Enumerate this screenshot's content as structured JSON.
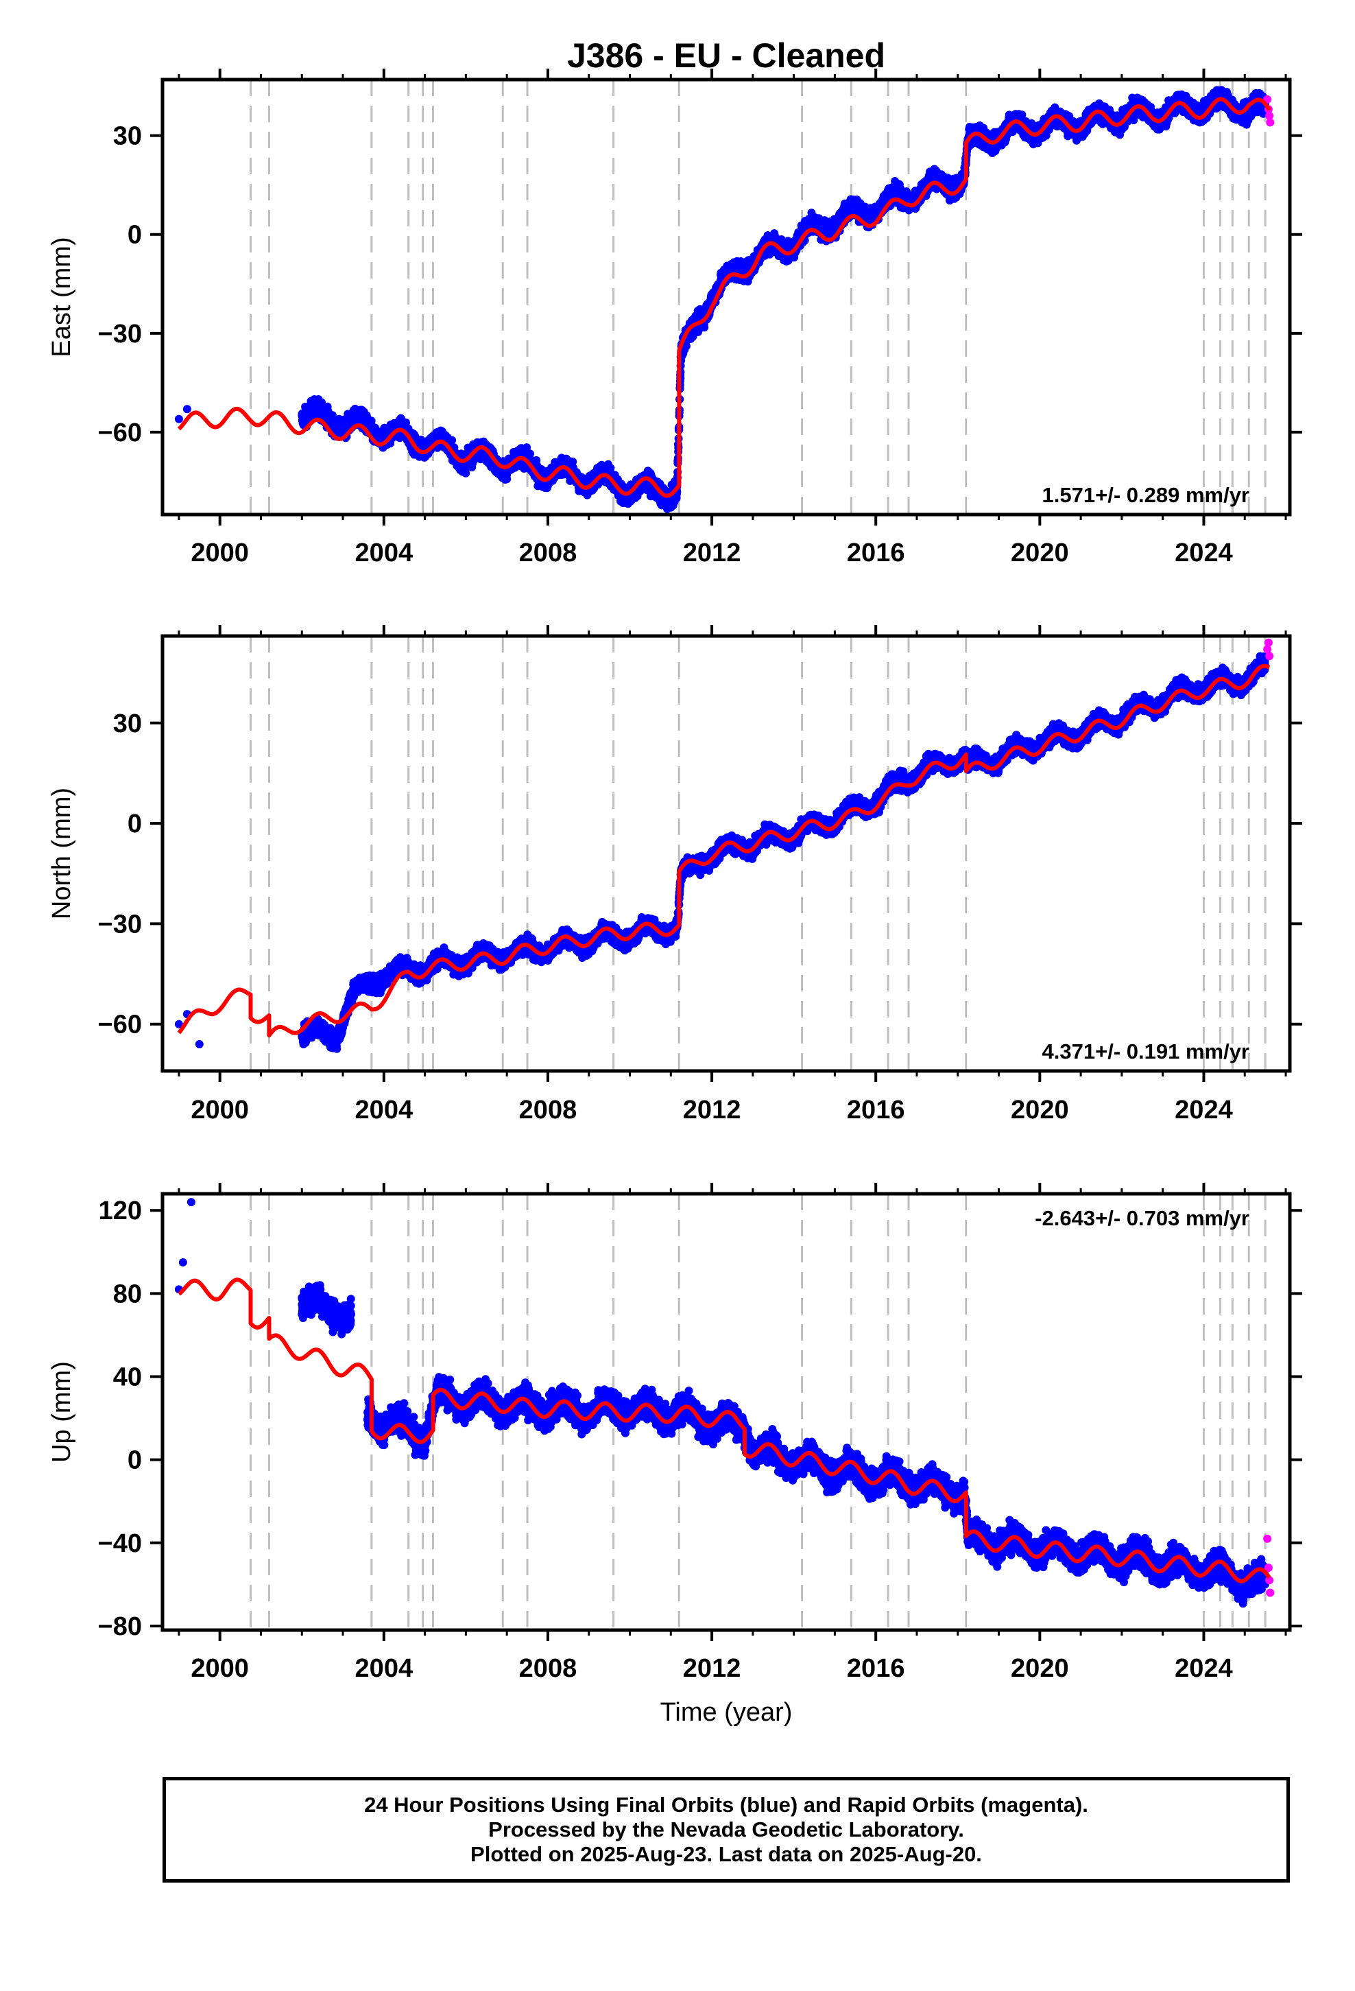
{
  "chart_data": {
    "type": "scatter",
    "title": "J386  - EU - Cleaned",
    "xlabel": "Time (year)",
    "xlim": [
      1998.6,
      2026.1
    ],
    "xticks": [
      2000,
      2004,
      2008,
      2012,
      2016,
      2020,
      2024
    ],
    "colors": {
      "final_orbits": "#0000ff",
      "rapid_orbits": "#ff00ff",
      "model": "#ff0000",
      "breaks": "#bfbfbf"
    },
    "equipment_breaks": [
      2000.75,
      2001.2,
      2003.7,
      2004.6,
      2004.95,
      2005.2,
      2006.9,
      2007.5,
      2009.6,
      2011.2,
      2014.2,
      2015.4,
      2016.3,
      2016.8,
      2018.2,
      2024.0,
      2024.4,
      2024.7,
      2025.1,
      2025.5
    ],
    "panels": [
      {
        "name": "east",
        "ylabel": "East (mm)",
        "ylim": [
          -85,
          47
        ],
        "yticks": [
          -60,
          -30,
          0,
          30
        ],
        "rate_label": "1.571+/- 0.289 mm/yr",
        "rate_position": "bottom-right",
        "data_start": 2002.0,
        "noise": 2.5,
        "final_orbits": [
          [
            1999.0,
            -56
          ],
          [
            1999.2,
            -53
          ],
          [
            2002.0,
            -54
          ],
          [
            2003.0,
            -57
          ],
          [
            2004.0,
            -60
          ],
          [
            2005.0,
            -63
          ],
          [
            2006.0,
            -67
          ],
          [
            2007.0,
            -69
          ],
          [
            2008.0,
            -72
          ],
          [
            2009.0,
            -74
          ],
          [
            2010.0,
            -77
          ],
          [
            2011.15,
            -78
          ],
          [
            2011.25,
            -37
          ],
          [
            2011.6,
            -28
          ],
          [
            2012.0,
            -18
          ],
          [
            2012.5,
            -13
          ],
          [
            2013.0,
            -7
          ],
          [
            2014.0,
            -2
          ],
          [
            2015.0,
            4
          ],
          [
            2016.0,
            8
          ],
          [
            2017.0,
            13
          ],
          [
            2018.15,
            17
          ],
          [
            2018.25,
            27
          ],
          [
            2019.0,
            31
          ],
          [
            2020.0,
            33
          ],
          [
            2021.0,
            34
          ],
          [
            2022.0,
            36
          ],
          [
            2023.0,
            37
          ],
          [
            2024.0,
            39
          ],
          [
            2025.0,
            39
          ],
          [
            2025.5,
            37
          ]
        ],
        "rapid_orbits": [
          [
            2025.55,
            41
          ],
          [
            2025.58,
            38
          ],
          [
            2025.6,
            36
          ],
          [
            2025.62,
            34
          ]
        ],
        "model": [
          [
            1999.0,
            -57
          ],
          [
            2000.75,
            -55
          ],
          [
            2001.2,
            -56
          ],
          [
            2002.0,
            -58
          ],
          [
            2003.7,
            -61
          ],
          [
            2004.6,
            -62
          ],
          [
            2005.2,
            -65
          ],
          [
            2006.9,
            -68
          ],
          [
            2007.5,
            -71
          ],
          [
            2009.6,
            -76
          ],
          [
            2011.2,
            -77
          ],
          [
            2011.2,
            -36
          ],
          [
            2011.6,
            -28
          ],
          [
            2012.0,
            -20
          ],
          [
            2012.6,
            -13
          ],
          [
            2013.2,
            -6
          ],
          [
            2014.2,
            -2
          ],
          [
            2015.4,
            3
          ],
          [
            2016.3,
            7
          ],
          [
            2016.8,
            11
          ],
          [
            2018.2,
            16
          ],
          [
            2018.2,
            27
          ],
          [
            2019.0,
            31
          ],
          [
            2020.0,
            33
          ],
          [
            2021.0,
            34
          ],
          [
            2022.0,
            36
          ],
          [
            2023.0,
            37
          ],
          [
            2024.0,
            38
          ],
          [
            2024.7,
            39
          ],
          [
            2025.1,
            40
          ],
          [
            2025.6,
            37
          ]
        ],
        "seasonal_amplitude": 2.5
      },
      {
        "name": "north",
        "ylabel": "North (mm)",
        "ylim": [
          -74,
          56
        ],
        "yticks": [
          -60,
          -30,
          0,
          30
        ],
        "rate_label": "4.371+/- 0.191 mm/yr",
        "rate_position": "bottom-right",
        "data_start": 2002.0,
        "noise": 2.2,
        "final_orbits": [
          [
            1999.0,
            -60
          ],
          [
            1999.2,
            -57
          ],
          [
            1999.5,
            -66
          ],
          [
            2002.0,
            -62
          ],
          [
            2002.8,
            -64
          ],
          [
            2003.2,
            -52
          ],
          [
            2004.0,
            -45
          ],
          [
            2005.0,
            -43
          ],
          [
            2006.0,
            -41
          ],
          [
            2007.0,
            -39
          ],
          [
            2008.0,
            -37
          ],
          [
            2009.0,
            -35
          ],
          [
            2010.0,
            -33
          ],
          [
            2011.15,
            -31
          ],
          [
            2011.25,
            -16
          ],
          [
            2012.0,
            -9
          ],
          [
            2013.0,
            -6
          ],
          [
            2014.0,
            -3
          ],
          [
            2015.0,
            1
          ],
          [
            2016.0,
            7
          ],
          [
            2017.0,
            15
          ],
          [
            2018.15,
            20
          ],
          [
            2018.25,
            17
          ],
          [
            2019.0,
            20
          ],
          [
            2020.0,
            24
          ],
          [
            2021.0,
            27
          ],
          [
            2022.0,
            32
          ],
          [
            2023.0,
            37
          ],
          [
            2024.0,
            41
          ],
          [
            2025.0,
            43
          ],
          [
            2025.5,
            46
          ]
        ],
        "rapid_orbits": [
          [
            2025.55,
            52
          ],
          [
            2025.58,
            54
          ],
          [
            2025.6,
            50
          ]
        ],
        "model": [
          [
            1999.0,
            -61
          ],
          [
            2000.0,
            -54
          ],
          [
            2000.75,
            -50
          ],
          [
            2000.75,
            -57
          ],
          [
            2001.2,
            -58
          ],
          [
            2001.2,
            -64
          ],
          [
            2002.0,
            -60
          ],
          [
            2003.7,
            -55
          ],
          [
            2004.6,
            -45
          ],
          [
            2005.2,
            -43
          ],
          [
            2006.9,
            -40
          ],
          [
            2007.5,
            -38
          ],
          [
            2009.6,
            -33
          ],
          [
            2011.2,
            -31
          ],
          [
            2011.2,
            -15
          ],
          [
            2012.0,
            -9
          ],
          [
            2013.0,
            -6
          ],
          [
            2014.2,
            -2
          ],
          [
            2015.4,
            2
          ],
          [
            2016.3,
            8
          ],
          [
            2016.8,
            13
          ],
          [
            2018.2,
            20
          ],
          [
            2018.2,
            15
          ],
          [
            2019.0,
            19
          ],
          [
            2020.0,
            23
          ],
          [
            2021.0,
            27
          ],
          [
            2022.0,
            31
          ],
          [
            2023.0,
            36
          ],
          [
            2024.0,
            40
          ],
          [
            2025.1,
            43
          ],
          [
            2025.6,
            46
          ]
        ],
        "seasonal_amplitude": 2.0
      },
      {
        "name": "up",
        "ylabel": "Up (mm)",
        "ylim": [
          -82,
          128
        ],
        "yticks": [
          -80,
          -40,
          0,
          40,
          80,
          120
        ],
        "rate_label": "-2.643+/- 0.703 mm/yr",
        "rate_position": "top-right",
        "data_start": 2003.6,
        "noise": 6,
        "final_orbits": [
          [
            1999.0,
            82
          ],
          [
            1999.1,
            95
          ],
          [
            1999.3,
            124
          ],
          [
            2002.0,
            78
          ],
          [
            2002.5,
            73
          ],
          [
            2003.2,
            70
          ],
          [
            2003.6,
            22
          ],
          [
            2004.0,
            18
          ],
          [
            2005.0,
            12
          ],
          [
            2005.3,
            30
          ],
          [
            2006.0,
            28
          ],
          [
            2007.0,
            26
          ],
          [
            2008.0,
            25
          ],
          [
            2009.0,
            24
          ],
          [
            2010.0,
            25
          ],
          [
            2011.0,
            23
          ],
          [
            2012.0,
            18
          ],
          [
            2012.8,
            16
          ],
          [
            2013.0,
            5
          ],
          [
            2014.0,
            0
          ],
          [
            2015.0,
            -5
          ],
          [
            2016.0,
            -8
          ],
          [
            2017.0,
            -11
          ],
          [
            2018.15,
            -16
          ],
          [
            2018.25,
            -38
          ],
          [
            2019.0,
            -40
          ],
          [
            2020.0,
            -42
          ],
          [
            2021.0,
            -45
          ],
          [
            2022.0,
            -47
          ],
          [
            2023.0,
            -50
          ],
          [
            2024.0,
            -53
          ],
          [
            2025.0,
            -57
          ],
          [
            2025.5,
            -60
          ]
        ],
        "rapid_orbits": [
          [
            2025.55,
            -38
          ],
          [
            2025.58,
            -52
          ],
          [
            2025.6,
            -58
          ],
          [
            2025.62,
            -64
          ]
        ],
        "model": [
          [
            1999.0,
            83
          ],
          [
            2000.0,
            81
          ],
          [
            2000.75,
            84
          ],
          [
            2000.75,
            68
          ],
          [
            2001.2,
            67
          ],
          [
            2001.2,
            57
          ],
          [
            2002.0,
            52
          ],
          [
            2003.0,
            44
          ],
          [
            2003.7,
            40
          ],
          [
            2003.7,
            15
          ],
          [
            2004.6,
            12
          ],
          [
            2005.2,
            13
          ],
          [
            2005.2,
            30
          ],
          [
            2006.9,
            27
          ],
          [
            2007.5,
            25
          ],
          [
            2009.6,
            23
          ],
          [
            2011.2,
            22
          ],
          [
            2012.0,
            20
          ],
          [
            2012.8,
            18
          ],
          [
            2012.8,
            6
          ],
          [
            2014.2,
            0
          ],
          [
            2015.4,
            -5
          ],
          [
            2016.3,
            -9
          ],
          [
            2016.8,
            -12
          ],
          [
            2018.2,
            -17
          ],
          [
            2018.2,
            -38
          ],
          [
            2019.0,
            -40
          ],
          [
            2020.0,
            -43
          ],
          [
            2021.0,
            -45
          ],
          [
            2022.0,
            -47
          ],
          [
            2023.0,
            -50
          ],
          [
            2024.0,
            -52
          ],
          [
            2025.1,
            -55
          ],
          [
            2025.6,
            -58
          ]
        ],
        "seasonal_amplitude": 4.0
      }
    ]
  },
  "footer": {
    "line1": "24 Hour Positions Using Final Orbits (blue) and Rapid Orbits (magenta).",
    "line2": "Processed by the Nevada Geodetic Laboratory.",
    "line3": "Plotted on 2025-Aug-23. Last data on 2025-Aug-20."
  }
}
